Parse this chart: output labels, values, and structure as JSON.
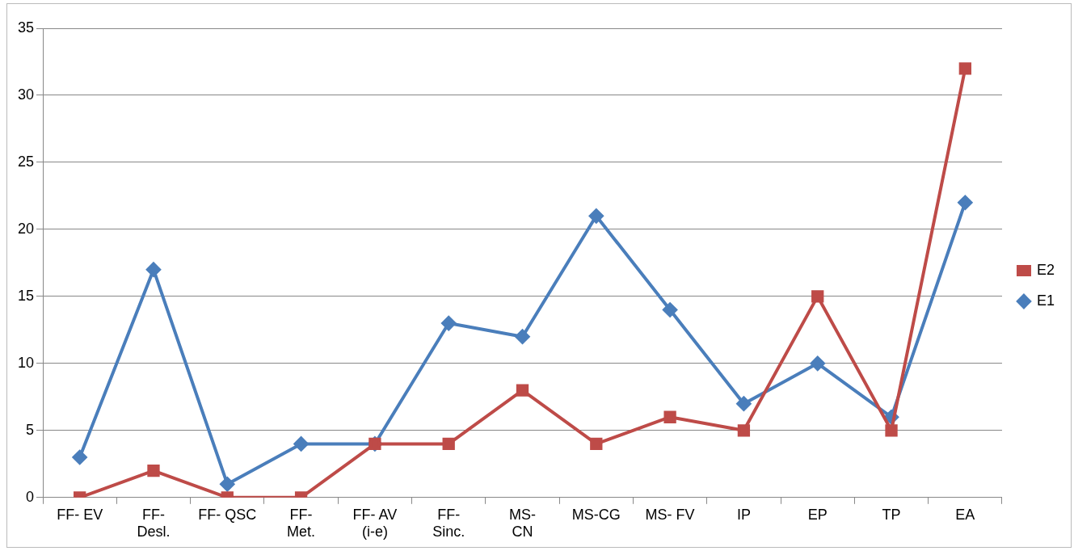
{
  "chart_data": {
    "type": "line",
    "categories": [
      "FF- EV",
      "FF-\nDesl.",
      "FF- QSC",
      "FF-\nMet.",
      "FF- AV\n(i-e)",
      "FF-\nSinc.",
      "MS-\nCN",
      "MS-CG",
      "MS- FV",
      "IP",
      "EP",
      "TP",
      "EA"
    ],
    "series": [
      {
        "name": "E1",
        "color": "#4a7ebb",
        "marker": "diamond",
        "values": [
          3,
          17,
          1,
          4,
          4,
          13,
          12,
          21,
          14,
          7,
          10,
          6,
          22
        ]
      },
      {
        "name": "E2",
        "color": "#be4b48",
        "marker": "square",
        "values": [
          0,
          2,
          0,
          0,
          4,
          4,
          8,
          4,
          6,
          5,
          15,
          5,
          32
        ]
      }
    ],
    "ylim": [
      0,
      35
    ],
    "yticks": [
      0,
      5,
      10,
      15,
      20,
      25,
      30,
      35
    ],
    "grid": "y",
    "legend": "right",
    "line_style": "solid"
  }
}
